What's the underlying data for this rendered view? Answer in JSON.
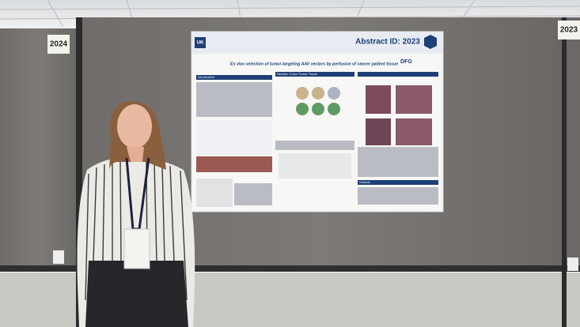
{
  "board_labels": [
    "2024",
    "2023"
  ],
  "poster": {
    "logo": "UK",
    "abstract_id": "Abstract ID: 2023",
    "title": "Ex vivo selection of tumor-targeting AAV vectors by perfusion of cancer patient tissue",
    "funder": "DFG",
    "sections": [
      "Introduction",
      "Results: Colon Tumor Tissue",
      "Outlook"
    ]
  }
}
